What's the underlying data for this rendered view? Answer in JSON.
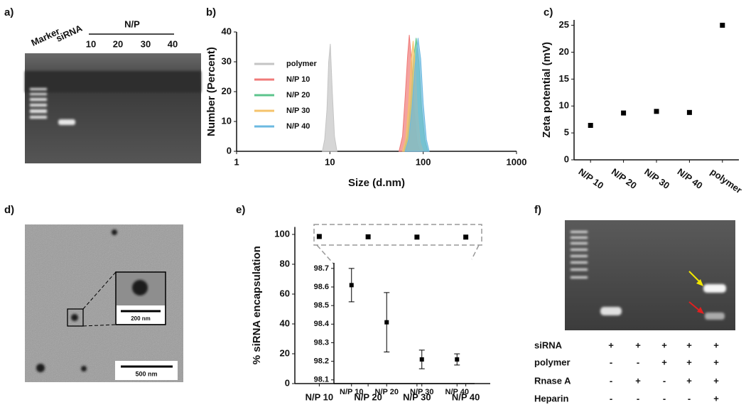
{
  "figure": {
    "panel_labels": [
      "a)",
      "b)",
      "c)",
      "d)",
      "e)",
      "f)"
    ]
  },
  "gel_a": {
    "lane_labels": [
      "Marker",
      "siRNA"
    ],
    "group_label": "N/P",
    "group_lanes": [
      "10",
      "20",
      "30",
      "40"
    ]
  },
  "tem": {
    "inset_scale": "200 nm",
    "scale": "500 nm"
  },
  "gel_f": {
    "rows": [
      {
        "label": "siRNA",
        "signs": [
          "+",
          "+",
          "+",
          "+",
          "+"
        ]
      },
      {
        "label": "polymer",
        "signs": [
          "-",
          "-",
          "+",
          "+",
          "+"
        ]
      },
      {
        "label": "Rnase A",
        "signs": [
          "-",
          "+",
          "-",
          "+",
          "+"
        ]
      },
      {
        "label": "Heparin",
        "signs": [
          "-",
          "-",
          "-",
          "-",
          "+"
        ]
      }
    ]
  },
  "chart_data": [
    {
      "type": "area",
      "xlabel": "Size (d.nm)",
      "ylabel": "Number (Percent)",
      "xscale": "log",
      "xlim": [
        1,
        1000
      ],
      "xticks": [
        1,
        10,
        100,
        1000
      ],
      "ylim": [
        0,
        40
      ],
      "yticks": [
        0,
        10,
        20,
        30,
        40
      ],
      "grid": false,
      "legend": "upper left",
      "series": [
        {
          "name": "polymer",
          "color": "#c4c4c4",
          "x": [
            8.3,
            8.8,
            9.3,
            9.7,
            10.1,
            10.6,
            11.2,
            11.9
          ],
          "values": [
            0,
            4,
            14,
            30,
            36,
            20,
            5,
            0
          ]
        },
        {
          "name": "N/P 10",
          "color": "#f07a78",
          "x": [
            55,
            60,
            64,
            68,
            71,
            75,
            80,
            86,
            92
          ],
          "values": [
            0,
            5,
            18,
            32,
            39,
            30,
            14,
            3,
            0
          ]
        },
        {
          "name": "N/P 20",
          "color": "#5cc48c",
          "x": [
            62,
            68,
            74,
            79,
            84,
            90,
            96,
            104,
            112
          ],
          "values": [
            0,
            5,
            17,
            31,
            38,
            30,
            15,
            4,
            0
          ]
        },
        {
          "name": "N/P 30",
          "color": "#f5c36b",
          "x": [
            60,
            65,
            70,
            74,
            78,
            82,
            87,
            93,
            100
          ],
          "values": [
            0,
            4,
            16,
            30,
            37,
            29,
            13,
            3,
            0
          ]
        },
        {
          "name": "N/P 40",
          "color": "#6cb9e0",
          "x": [
            64,
            70,
            76,
            82,
            88,
            94,
            100,
            108,
            116
          ],
          "values": [
            0,
            4,
            15,
            29,
            38,
            31,
            16,
            4,
            0
          ]
        }
      ]
    },
    {
      "type": "scatter",
      "ylabel": "Zeta potential (mV)",
      "categories": [
        "N/P 10",
        "N/P 20",
        "N/P 30",
        "N/P 40",
        "polymer"
      ],
      "values": [
        6.4,
        8.7,
        9.0,
        8.8,
        25
      ],
      "color": "#000000",
      "ylim": [
        0,
        26
      ],
      "yticks": [
        0,
        5,
        10,
        15,
        20,
        25
      ],
      "grid": false
    },
    {
      "type": "scatter",
      "ylabel": "% siRNA encapsulation",
      "categories": [
        "N/P 10",
        "N/P 20",
        "N/P 30",
        "N/P 40"
      ],
      "values": [
        98.6,
        98.4,
        98.2,
        98.2
      ],
      "color": "#000000",
      "ylim": [
        0,
        105
      ],
      "yticks": [
        0,
        20,
        40,
        60,
        80,
        100
      ],
      "grid": false
    },
    {
      "type": "errorbar",
      "categories": [
        "N/P 10",
        "N/P 20",
        "N/P 30",
        "N/P 40"
      ],
      "values": [
        98.61,
        98.41,
        98.21,
        98.21
      ],
      "errors": [
        0.09,
        0.16,
        0.05,
        0.03
      ],
      "color": "#000000",
      "ylim": [
        98.08,
        98.73
      ],
      "yticks": [
        98.1,
        98.2,
        98.3,
        98.4,
        98.5,
        98.6,
        98.7
      ],
      "grid": false
    }
  ]
}
